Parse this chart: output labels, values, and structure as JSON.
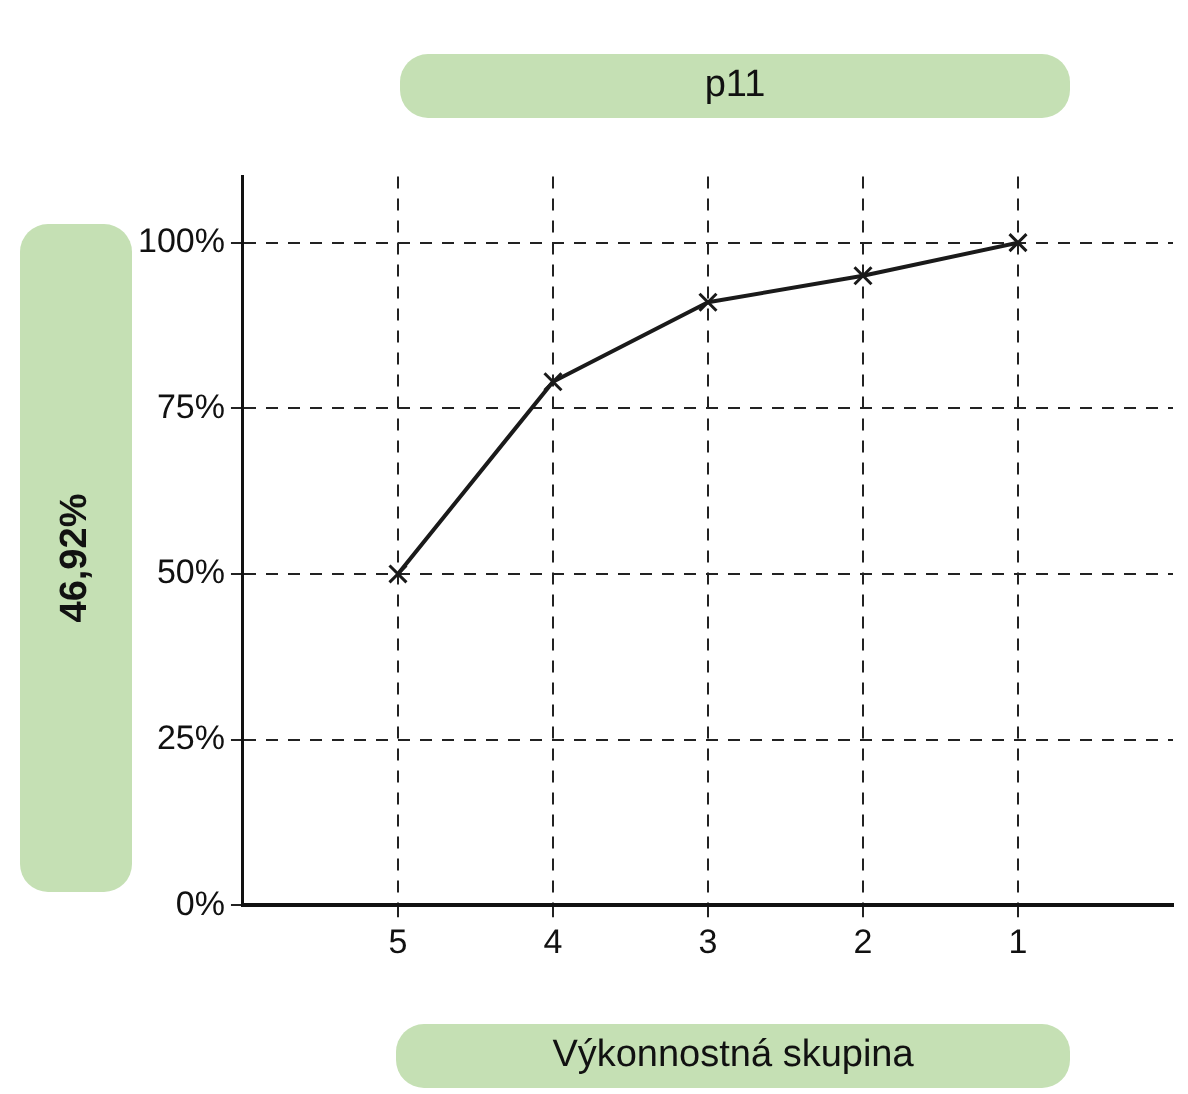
{
  "chart_data": {
    "type": "line",
    "title": "p11",
    "xlabel": "Výkonnostná skupina",
    "ylabel": "46,92%",
    "categories": [
      "5",
      "4",
      "3",
      "2",
      "1"
    ],
    "series": [
      {
        "color": "#1a1a1a",
        "values": [
          50,
          79,
          91,
          95,
          100
        ]
      }
    ],
    "ylim": [
      0,
      110
    ],
    "yticks": [
      {
        "value": 0,
        "label": "0%"
      },
      {
        "value": 25,
        "label": "25%"
      },
      {
        "value": 50,
        "label": "50%"
      },
      {
        "value": 75,
        "label": "75%"
      },
      {
        "value": 100,
        "label": "100%"
      }
    ],
    "grid": true,
    "legend": false,
    "marker": "cross",
    "line_style": "solid"
  }
}
